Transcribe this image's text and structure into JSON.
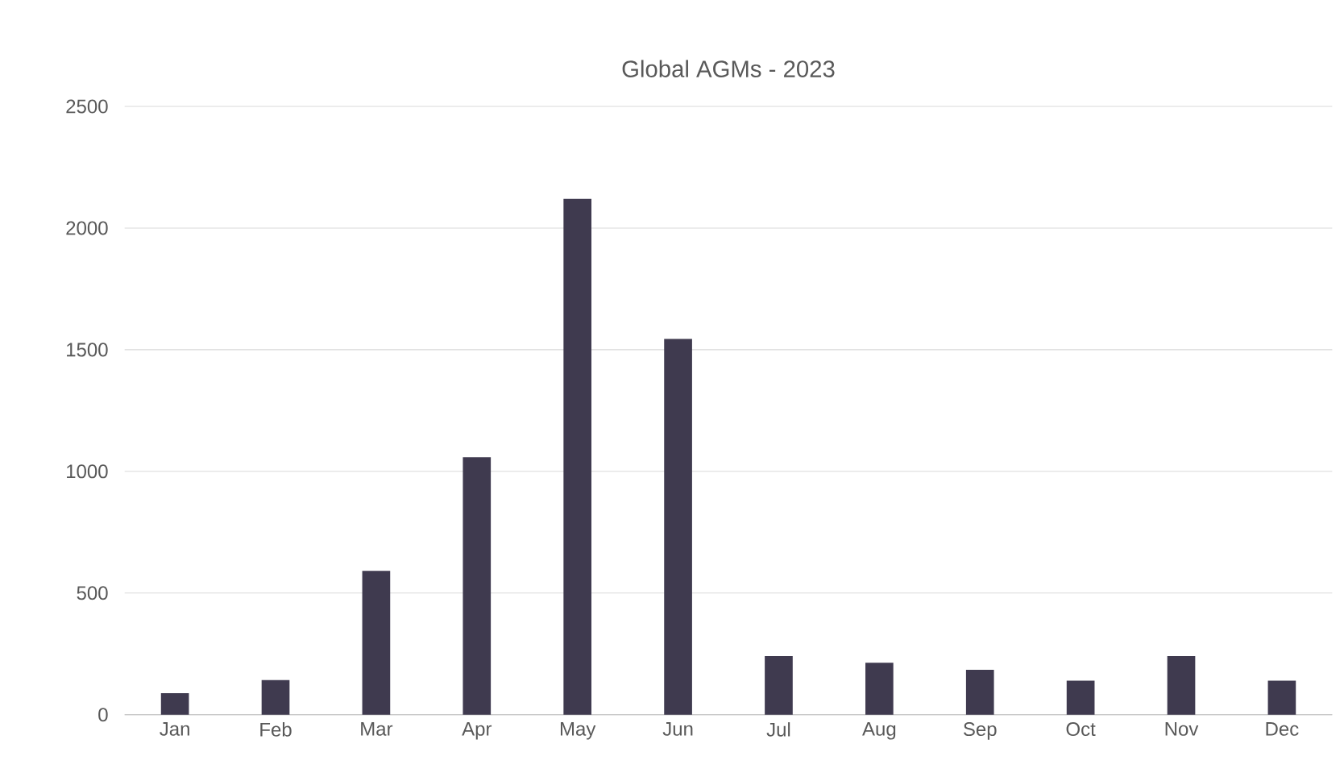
{
  "chart_data": {
    "type": "bar",
    "title": "Global AGMs - 2023",
    "categories": [
      "Jan",
      "Feb",
      "Mar",
      "Apr",
      "May",
      "Jun",
      "Jul",
      "Aug",
      "Sep",
      "Oct",
      "Nov",
      "Dec"
    ],
    "values": [
      88,
      142,
      591,
      1058,
      2120,
      1544,
      241,
      213,
      184,
      140,
      241,
      140
    ],
    "color": "#3f3a4f",
    "ylim": [
      0,
      2500
    ],
    "yticks": [
      0,
      500,
      1000,
      1500,
      2000,
      2500
    ],
    "grid": "y"
  }
}
